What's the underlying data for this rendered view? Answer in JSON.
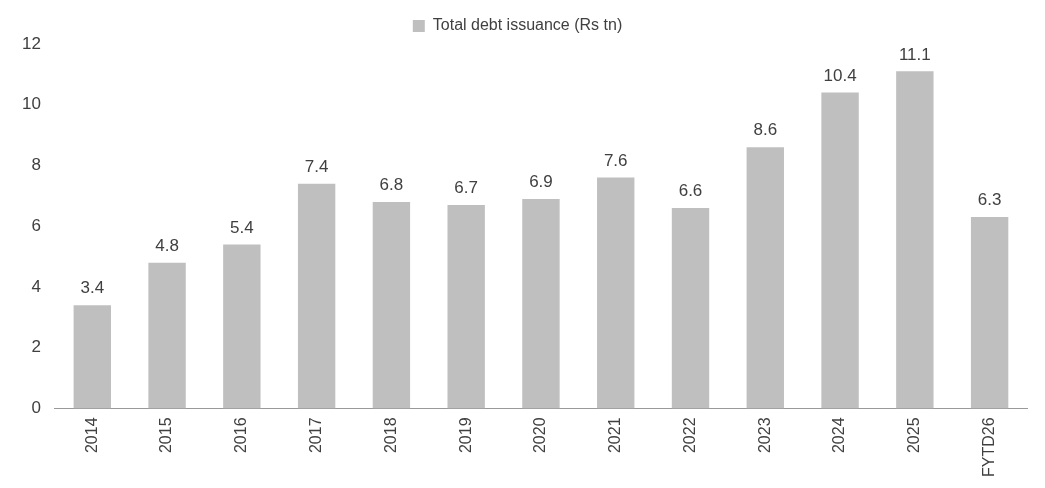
{
  "chart_data": {
    "type": "bar",
    "categories": [
      "2014",
      "2015",
      "2016",
      "2017",
      "2018",
      "2019",
      "2020",
      "2021",
      "2022",
      "2023",
      "2024",
      "2025",
      "FYTD26"
    ],
    "series": [
      {
        "name": "Total debt issuance (Rs tn)",
        "color": "#bfbfbf",
        "values": [
          3.4,
          4.8,
          5.4,
          7.4,
          6.8,
          6.7,
          6.9,
          7.6,
          6.6,
          8.6,
          10.4,
          11.1,
          6.3
        ]
      }
    ],
    "ylim": [
      0,
      12
    ],
    "yticks": [
      0,
      2,
      4,
      6,
      8,
      10,
      12
    ],
    "grid": false,
    "legend": "top",
    "data_labels": true
  }
}
